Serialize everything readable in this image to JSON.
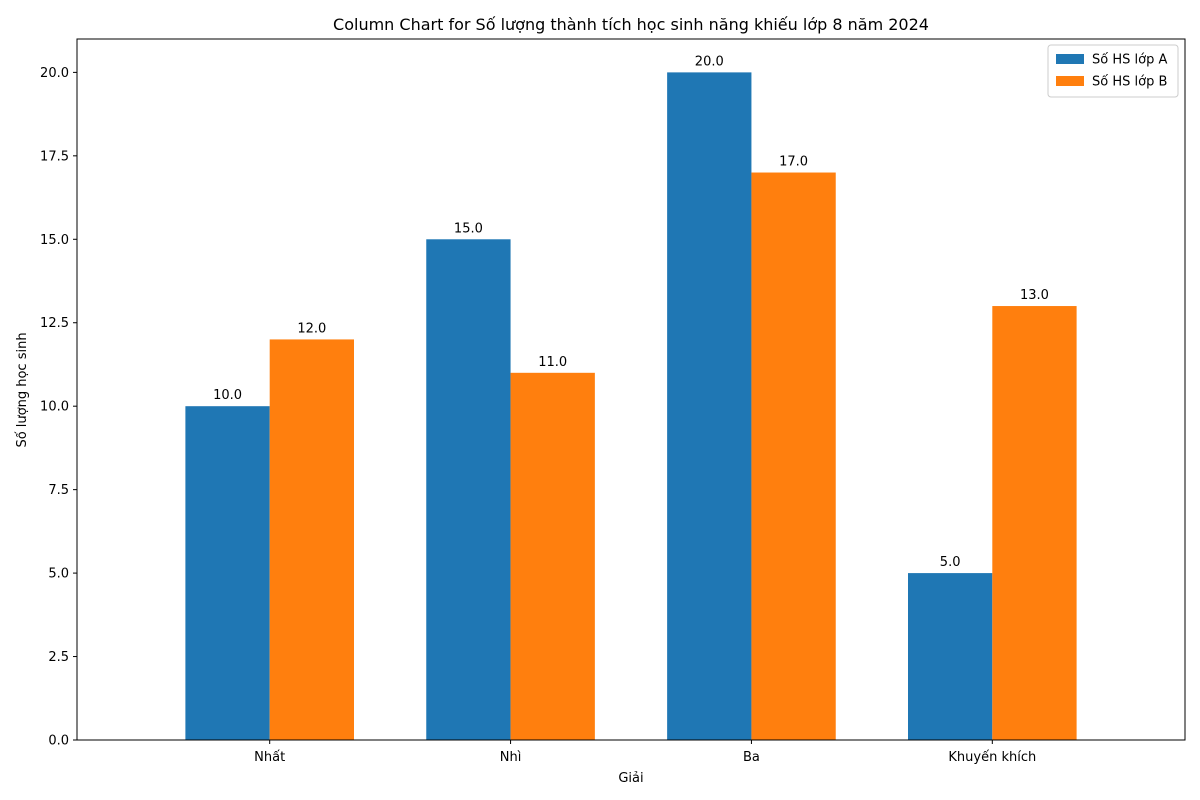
{
  "chart_data": {
    "type": "bar",
    "title": "Column Chart for Số lượng thành tích học sinh năng khiếu lớp 8 năm 2024",
    "xlabel": "Giải",
    "ylabel": "Số lượng học sinh",
    "categories": [
      "Nhất",
      "Nhì",
      "Ba",
      "Khuyến khích"
    ],
    "series": [
      {
        "name": "Số HS lớp A",
        "values": [
          10.0,
          15.0,
          20.0,
          5.0
        ],
        "color": "#1f77b4"
      },
      {
        "name": "Số HS lớp B",
        "values": [
          12.0,
          11.0,
          17.0,
          13.0
        ],
        "color": "#ff7f0e"
      }
    ],
    "ylim": [
      0,
      21
    ],
    "yticks": [
      "0.0",
      "2.5",
      "5.0",
      "7.5",
      "10.0",
      "12.5",
      "15.0",
      "17.5",
      "20.0"
    ],
    "grid": false,
    "legend_position": "top-right",
    "data_labels": true
  }
}
